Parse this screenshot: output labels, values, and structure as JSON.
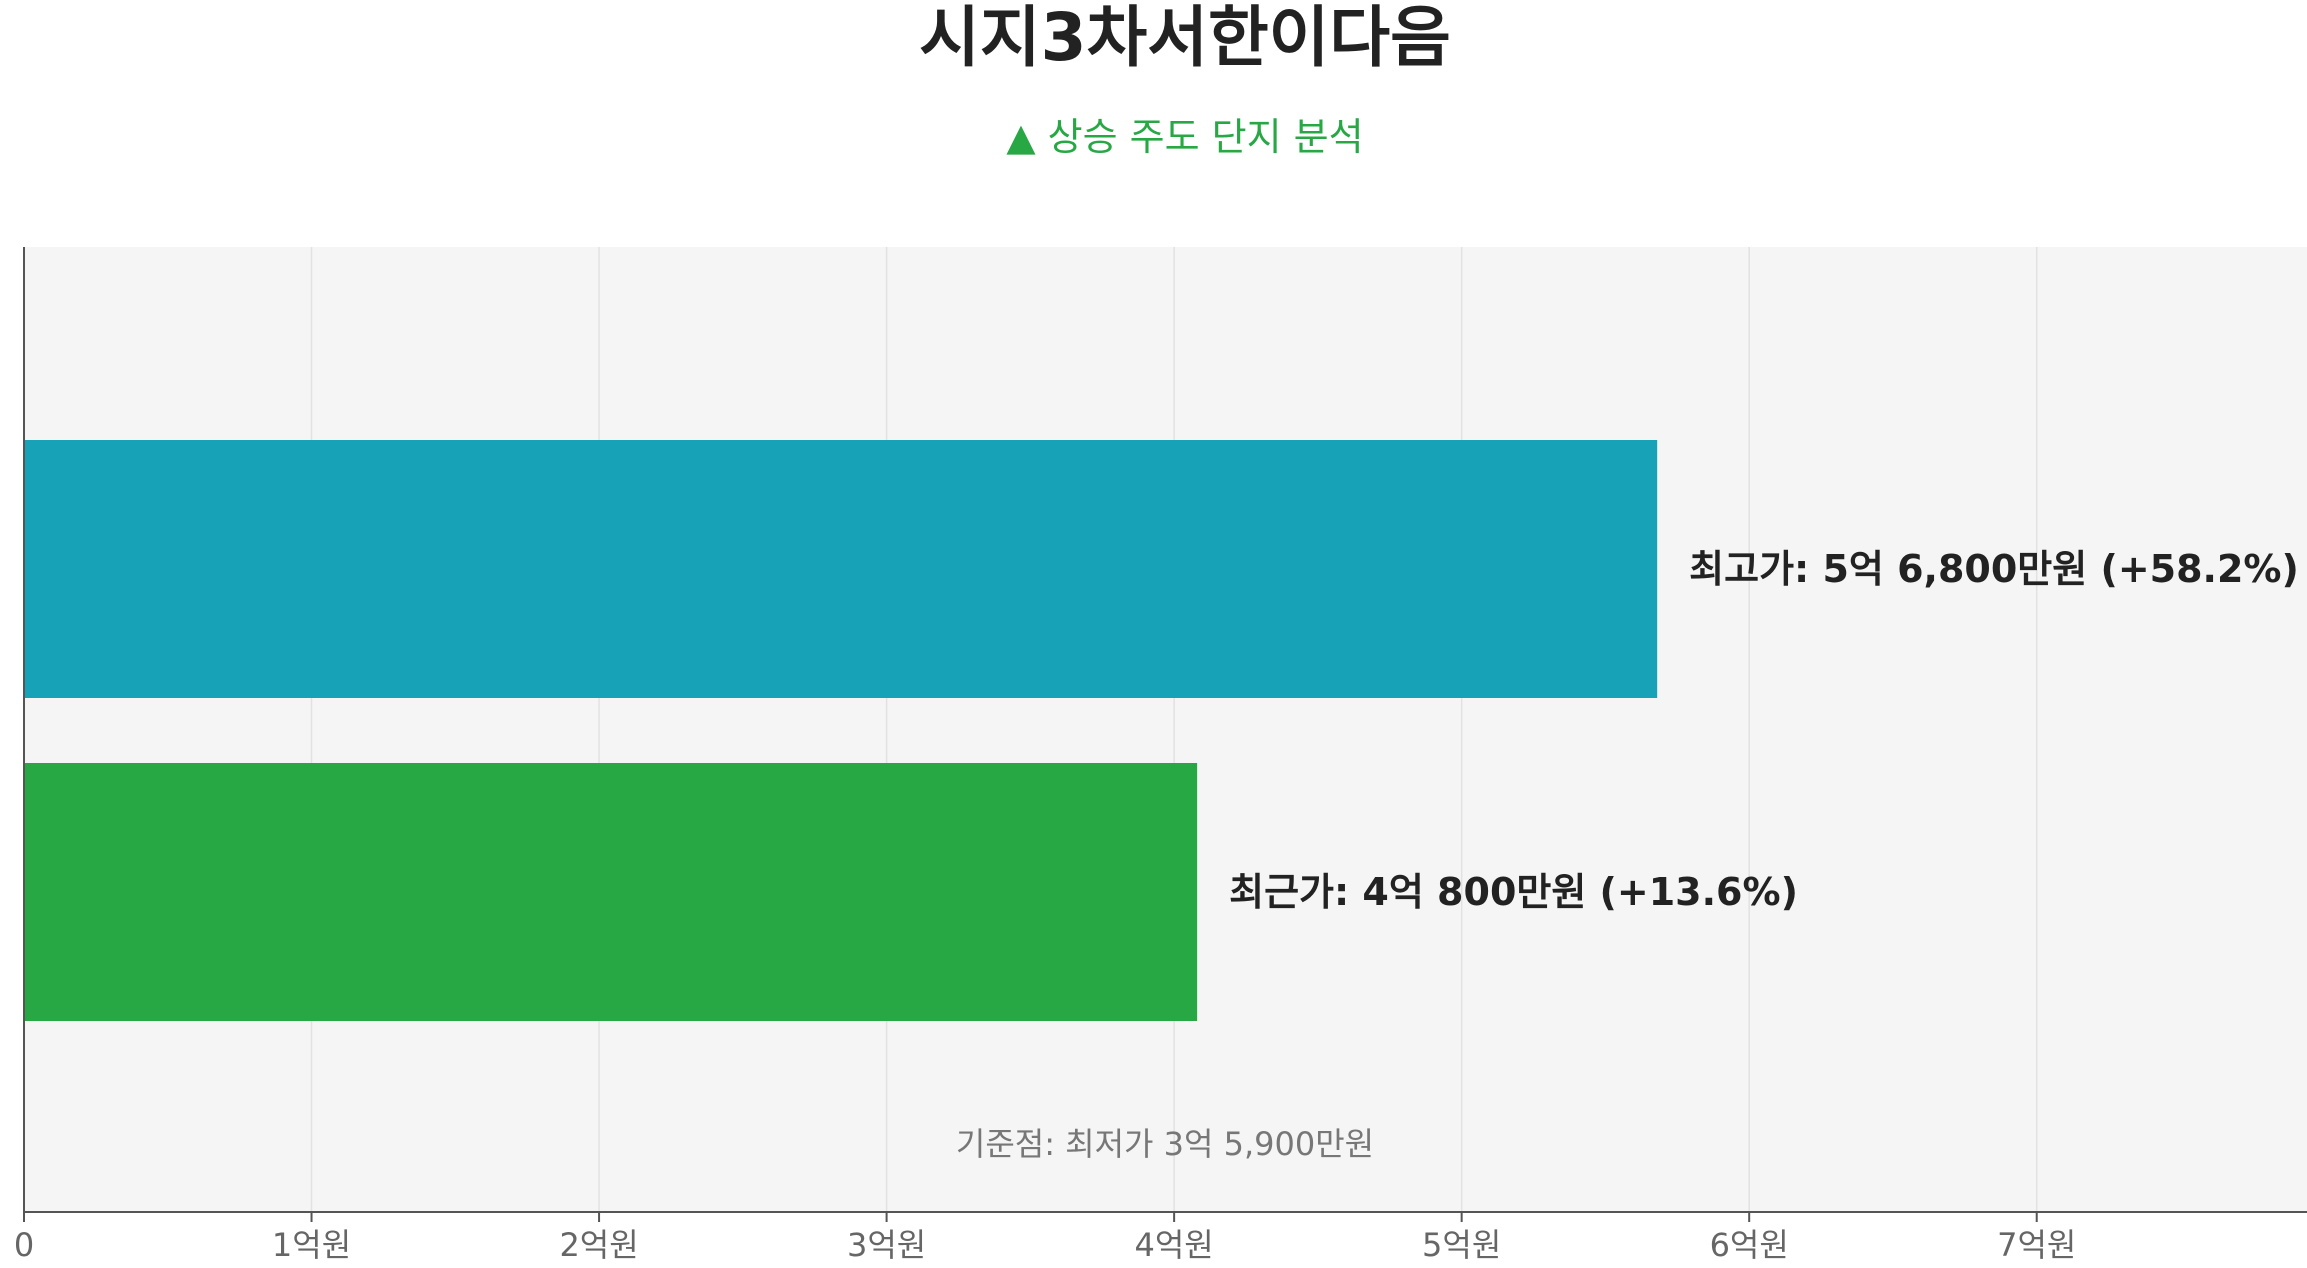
{
  "chart_data": {
    "type": "bar",
    "orientation": "horizontal",
    "title": "시지3차서한이다음",
    "subtitle": "▲ 상승 주도 단지 분석",
    "xlim": [
      0,
      7.94
    ],
    "x_ticks": [
      0,
      1,
      2,
      3,
      4,
      5,
      6,
      7
    ],
    "x_tick_labels": [
      "0",
      "1억원",
      "2억원",
      "3억원",
      "4억원",
      "5억원",
      "6억원",
      "7억원"
    ],
    "grid": true,
    "series": [
      {
        "key": "highest",
        "value": 5.68,
        "label": "최고가: 5억 6,800만원 (+58.2%)",
        "color": "#17a2b8"
      },
      {
        "key": "recent",
        "value": 4.08,
        "label": "최근가: 4억 800만원 (+13.6%)",
        "color": "#28a745"
      }
    ],
    "annotation": "기준점: 최저가 3억 5,900만원",
    "colors": {
      "plot_background": "#f5f5f5",
      "grid": "#e2e2e2",
      "axis": "#555555",
      "subtitle": "#28a745"
    }
  }
}
